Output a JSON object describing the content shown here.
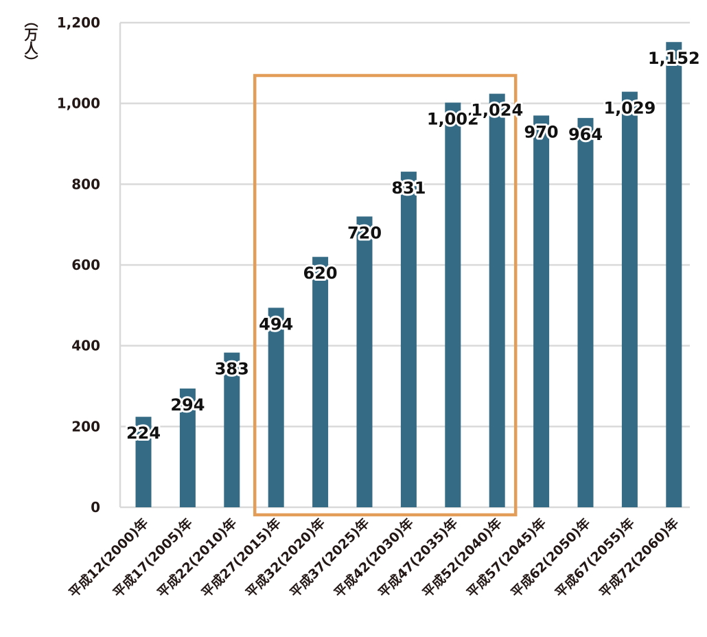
{
  "chart_data": {
    "type": "bar",
    "ylabel": "（万人）",
    "ylim": [
      0,
      1200
    ],
    "yticks": [
      "0",
      "200",
      "400",
      "600",
      "800",
      "1,000",
      "1,200"
    ],
    "ytick_values": [
      0,
      200,
      400,
      600,
      800,
      1000,
      1200
    ],
    "grid": true,
    "categories": [
      "平成12(2000)年",
      "平成17(2005)年",
      "平成22(2010)年",
      "平成27(2015)年",
      "平成32(2020)年",
      "平成37(2025)年",
      "平成42(2030)年",
      "平成47(2035)年",
      "平成52(2040)年",
      "平成57(2045)年",
      "平成62(2050)年",
      "平成67(2055)年",
      "平成72(2060)年"
    ],
    "values": [
      224,
      294,
      383,
      494,
      620,
      720,
      831,
      1002,
      1024,
      970,
      964,
      1029,
      1152
    ],
    "value_labels": [
      "224",
      "294",
      "383",
      "494",
      "620",
      "720",
      "831",
      "1,002",
      "1,024",
      "970",
      "964",
      "1,029",
      "1,152"
    ],
    "highlight_range": [
      "平成27(2015)年",
      "平成52(2040)年"
    ],
    "colors": {
      "bar": "#356b85",
      "highlight_box": "#e39d58",
      "grid": "#d9d9d9",
      "text": "#231815"
    }
  }
}
